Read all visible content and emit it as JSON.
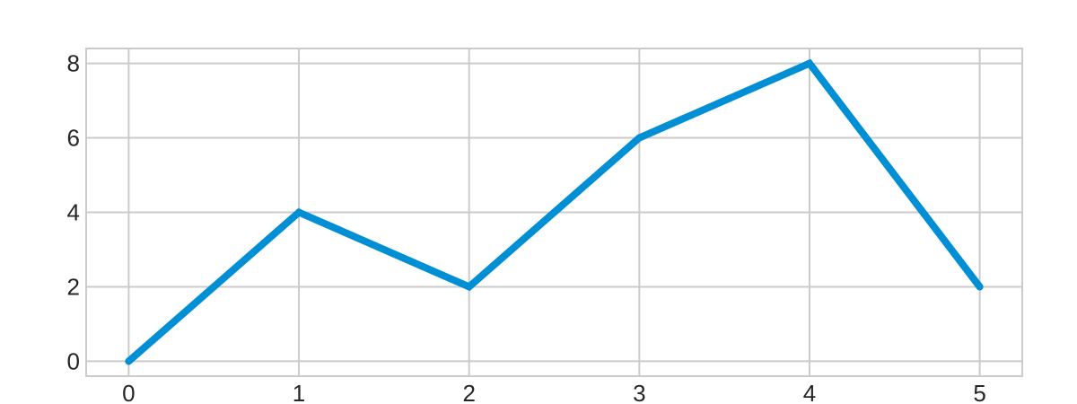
{
  "chart_data": {
    "type": "line",
    "title": "",
    "xlabel": "",
    "ylabel": "",
    "x": [
      0,
      1,
      2,
      3,
      4,
      5
    ],
    "series": [
      {
        "values": [
          0,
          4,
          2,
          6,
          8,
          2
        ],
        "color": "#008fd5"
      }
    ],
    "xticks": [
      "0",
      "1",
      "2",
      "3",
      "4",
      "5"
    ],
    "yticks": [
      "0",
      "2",
      "4",
      "6",
      "8"
    ],
    "xlim": [
      -0.25,
      5.25
    ],
    "ylim": [
      -0.4,
      8.4
    ],
    "grid": true,
    "legend": "none",
    "colors": {
      "grid": "#cbcbcb",
      "frame": "#cbcbcb",
      "text": "#262626",
      "background": "#ffffff"
    }
  }
}
